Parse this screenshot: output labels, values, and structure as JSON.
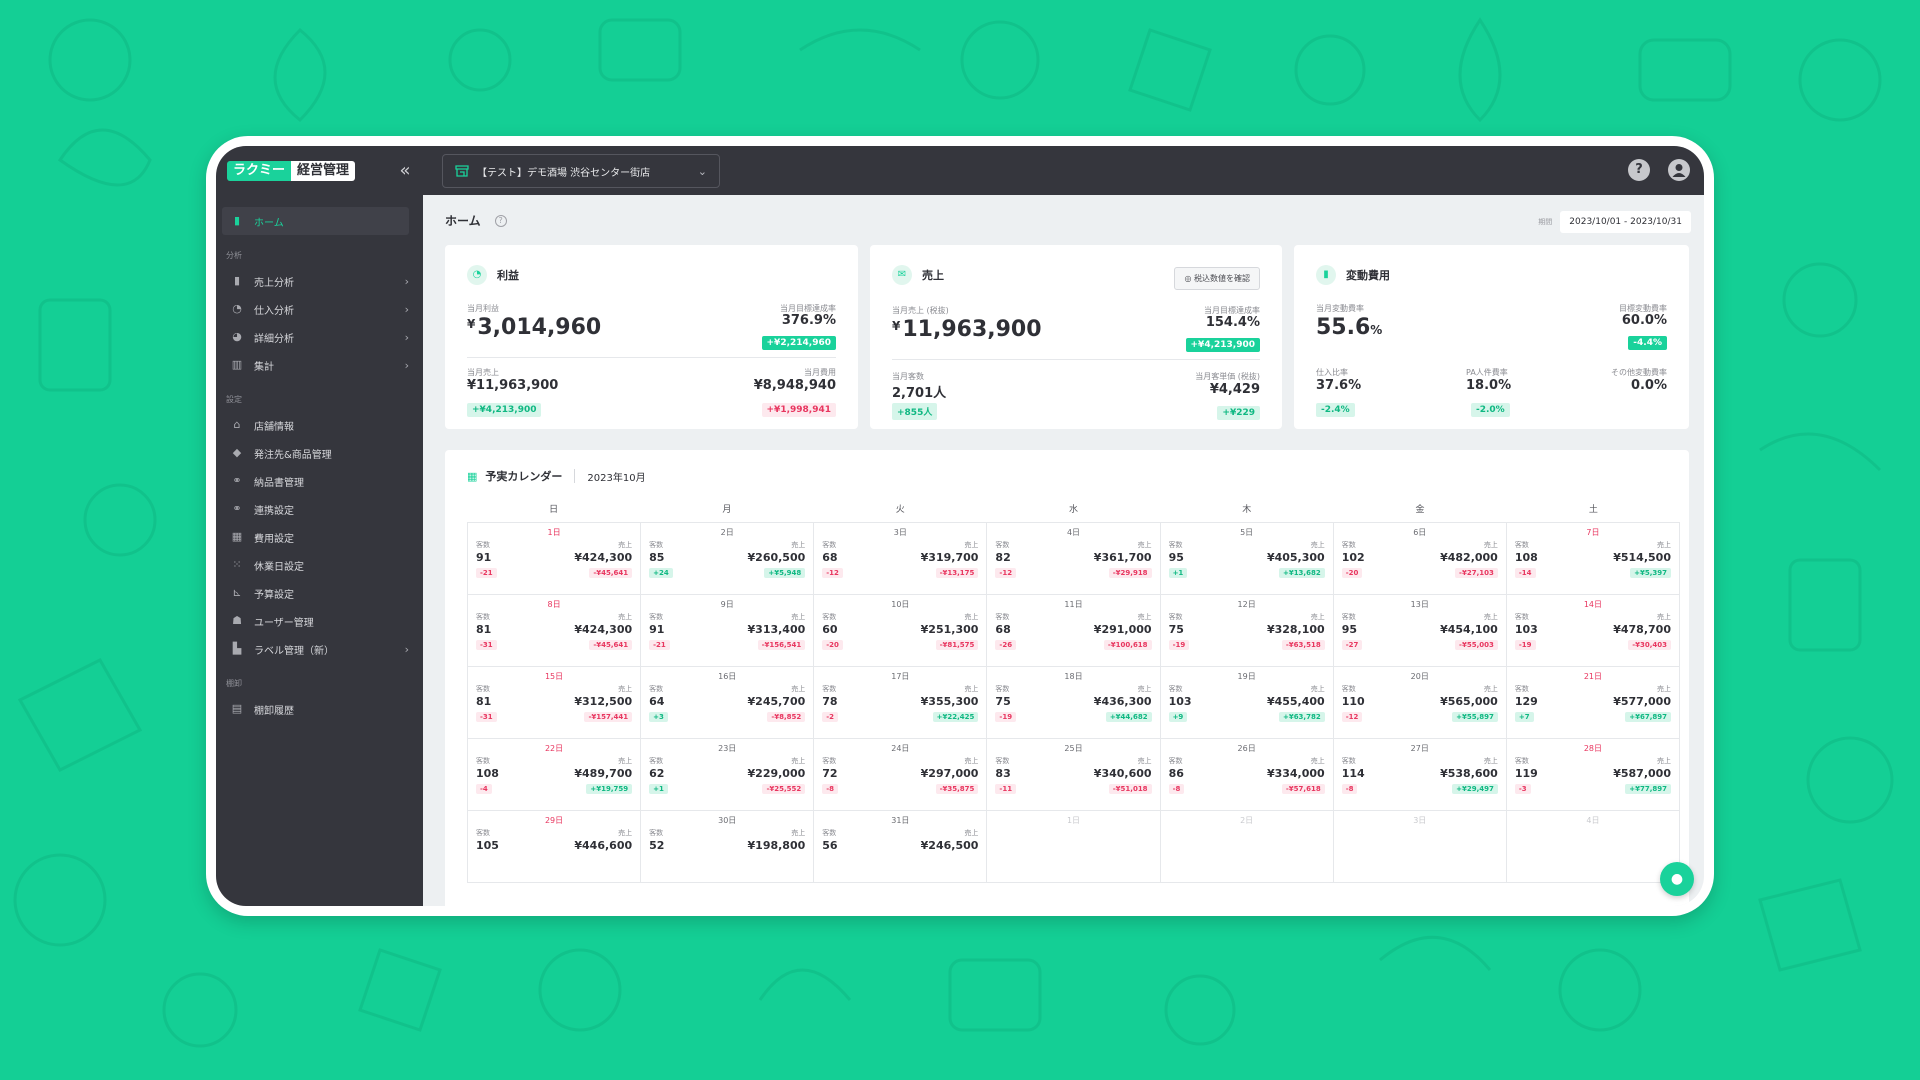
{
  "brand": {
    "logo_left": "ラクミー",
    "logo_right": "経営管理"
  },
  "topbar": {
    "store": "【テスト】デモ酒場 渋谷センター街店",
    "help": "?"
  },
  "sidebar": {
    "home": "ホーム",
    "sec_analysis": "分析",
    "sales": "売上分析",
    "purchase": "仕入分析",
    "detail": "詳細分析",
    "summary": "集計",
    "sec_settings": "設定",
    "store_info": "店舗情報",
    "order": "発注先&商品管理",
    "invoice": "納品書管理",
    "link": "連携設定",
    "cost": "費用設定",
    "holiday": "休業日設定",
    "budget": "予算設定",
    "user": "ユーザー管理",
    "label": "ラベル管理（新）",
    "sec_inventory": "棚卸",
    "inventory": "棚卸履歴"
  },
  "page": {
    "title": "ホーム",
    "period_label": "期間",
    "period": "2023/10/01 - 2023/10/31"
  },
  "profit": {
    "title": "利益",
    "month_label": "当月利益",
    "month_value": "3,014,960",
    "currency": "¥",
    "target_label": "当月目標達成率",
    "target_value": "376.9%",
    "target_diff": "+¥2,214,960",
    "sales_label": "当月売上",
    "sales_value": "¥11,963,900",
    "sales_diff": "+¥4,213,900",
    "cost_label": "当月費用",
    "cost_value": "¥8,948,940",
    "cost_diff": "+¥1,998,941"
  },
  "sales": {
    "title": "売上",
    "tax_button": "税込数値を確認",
    "month_label": "当月売上 (税抜)",
    "month_value": "11,963,900",
    "currency": "¥",
    "target_label": "当月目標達成率",
    "target_value": "154.4%",
    "target_diff": "+¥4,213,900",
    "customers_label": "当月客数",
    "customers_value": "2,701人",
    "customers_diff": "+855人",
    "avg_label": "当月客単価 (税抜)",
    "avg_value": "¥4,429",
    "avg_diff": "+¥229"
  },
  "variable": {
    "title": "変動費用",
    "month_label": "当月変動費率",
    "month_value": "55.6",
    "pct": "%",
    "target_label": "目標変動費率",
    "target_value": "60.0%",
    "target_diff": "-4.4%",
    "purchase_label": "仕入比率",
    "purchase_value": "37.6%",
    "purchase_diff": "-2.4%",
    "pa_label": "PA人件費率",
    "pa_value": "18.0%",
    "pa_diff": "-2.0%",
    "other_label": "その他変動費率",
    "other_value": "0.0%"
  },
  "calendar": {
    "title": "予実カレンダー",
    "month": "2023年10月",
    "dow": [
      "日",
      "月",
      "火",
      "水",
      "木",
      "金",
      "土"
    ],
    "customers_label": "客数",
    "sales_label": "売上",
    "days": [
      {
        "day": "1日",
        "c": "91",
        "s": "¥424,300",
        "cd": "-21",
        "sd": "-¥45,641",
        "red": true
      },
      {
        "day": "2日",
        "c": "85",
        "s": "¥260,500",
        "cd": "+24",
        "sd": "+¥5,948"
      },
      {
        "day": "3日",
        "c": "68",
        "s": "¥319,700",
        "cd": "-12",
        "sd": "-¥13,175"
      },
      {
        "day": "4日",
        "c": "82",
        "s": "¥361,700",
        "cd": "-12",
        "sd": "-¥29,918"
      },
      {
        "day": "5日",
        "c": "95",
        "s": "¥405,300",
        "cd": "+1",
        "sd": "+¥13,682"
      },
      {
        "day": "6日",
        "c": "102",
        "s": "¥482,000",
        "cd": "-20",
        "sd": "-¥27,103"
      },
      {
        "day": "7日",
        "c": "108",
        "s": "¥514,500",
        "cd": "-14",
        "sd": "+¥5,397",
        "red": true
      },
      {
        "day": "8日",
        "c": "81",
        "s": "¥424,300",
        "cd": "-31",
        "sd": "-¥45,641",
        "red": true
      },
      {
        "day": "9日",
        "c": "91",
        "s": "¥313,400",
        "cd": "-21",
        "sd": "-¥156,541"
      },
      {
        "day": "10日",
        "c": "60",
        "s": "¥251,300",
        "cd": "-20",
        "sd": "-¥81,575"
      },
      {
        "day": "11日",
        "c": "68",
        "s": "¥291,000",
        "cd": "-26",
        "sd": "-¥100,618"
      },
      {
        "day": "12日",
        "c": "75",
        "s": "¥328,100",
        "cd": "-19",
        "sd": "-¥63,518"
      },
      {
        "day": "13日",
        "c": "95",
        "s": "¥454,100",
        "cd": "-27",
        "sd": "-¥55,003"
      },
      {
        "day": "14日",
        "c": "103",
        "s": "¥478,700",
        "cd": "-19",
        "sd": "-¥30,403",
        "red": true
      },
      {
        "day": "15日",
        "c": "81",
        "s": "¥312,500",
        "cd": "-31",
        "sd": "-¥157,441",
        "red": true
      },
      {
        "day": "16日",
        "c": "64",
        "s": "¥245,700",
        "cd": "+3",
        "sd": "-¥8,852"
      },
      {
        "day": "17日",
        "c": "78",
        "s": "¥355,300",
        "cd": "-2",
        "sd": "+¥22,425"
      },
      {
        "day": "18日",
        "c": "75",
        "s": "¥436,300",
        "cd": "-19",
        "sd": "+¥44,682"
      },
      {
        "day": "19日",
        "c": "103",
        "s": "¥455,400",
        "cd": "+9",
        "sd": "+¥63,782"
      },
      {
        "day": "20日",
        "c": "110",
        "s": "¥565,000",
        "cd": "-12",
        "sd": "+¥55,897"
      },
      {
        "day": "21日",
        "c": "129",
        "s": "¥577,000",
        "cd": "+7",
        "sd": "+¥67,897",
        "red": true
      },
      {
        "day": "22日",
        "c": "108",
        "s": "¥489,700",
        "cd": "-4",
        "sd": "+¥19,759",
        "red": true
      },
      {
        "day": "23日",
        "c": "62",
        "s": "¥229,000",
        "cd": "+1",
        "sd": "-¥25,552"
      },
      {
        "day": "24日",
        "c": "72",
        "s": "¥297,000",
        "cd": "-8",
        "sd": "-¥35,875"
      },
      {
        "day": "25日",
        "c": "83",
        "s": "¥340,600",
        "cd": "-11",
        "sd": "-¥51,018"
      },
      {
        "day": "26日",
        "c": "86",
        "s": "¥334,000",
        "cd": "-8",
        "sd": "-¥57,618"
      },
      {
        "day": "27日",
        "c": "114",
        "s": "¥538,600",
        "cd": "-8",
        "sd": "+¥29,497"
      },
      {
        "day": "28日",
        "c": "119",
        "s": "¥587,000",
        "cd": "-3",
        "sd": "+¥77,897",
        "red": true
      },
      {
        "day": "29日",
        "c": "105",
        "s": "¥446,600",
        "red": true
      },
      {
        "day": "30日",
        "c": "52",
        "s": "¥198,800"
      },
      {
        "day": "31日",
        "c": "56",
        "s": "¥246,500"
      },
      {
        "day": "1日",
        "outside": true
      },
      {
        "day": "2日",
        "outside": true
      },
      {
        "day": "3日",
        "outside": true
      },
      {
        "day": "4日",
        "outside": true
      }
    ]
  },
  "colors": {
    "accent": "#1ad29b",
    "background": "#14cf95",
    "dark": "#35363d",
    "negative": "#e8365f"
  }
}
